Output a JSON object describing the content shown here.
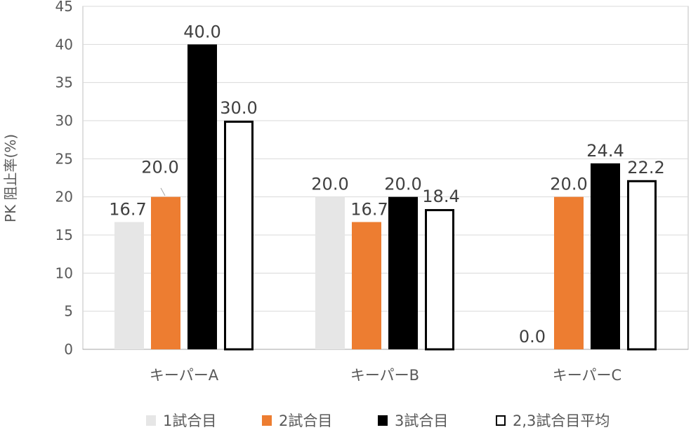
{
  "chart_data": {
    "type": "bar",
    "ylabel": "PK 阻止率(%)",
    "ylim": [
      0,
      45
    ],
    "yticks": [
      "0",
      "5",
      "10",
      "15",
      "20",
      "25",
      "30",
      "35",
      "40",
      "45"
    ],
    "categories": [
      "キーパーA",
      "キーパーB",
      "キーパーC"
    ],
    "series": [
      {
        "name": "1試合目",
        "values": [
          16.7,
          20.0,
          0.0
        ],
        "labels": [
          "16.7",
          "20.0",
          "0.0"
        ],
        "color": "#e6e6e6",
        "style": "fill"
      },
      {
        "name": "2試合目",
        "values": [
          20.0,
          16.7,
          20.0
        ],
        "labels": [
          "20.0",
          "16.7",
          "20.0"
        ],
        "color": "#ed7d31",
        "style": "fill"
      },
      {
        "name": "3試合目",
        "values": [
          40.0,
          20.0,
          24.4
        ],
        "labels": [
          "40.0",
          "20.0",
          "24.4"
        ],
        "color": "#000000",
        "style": "fill"
      },
      {
        "name": "2,3試合目平均",
        "values": [
          30.0,
          18.4,
          22.2
        ],
        "labels": [
          "30.0",
          "18.4",
          "22.2"
        ],
        "color": "#000000",
        "style": "outline"
      }
    ],
    "grid": true,
    "legend": "bottom"
  }
}
